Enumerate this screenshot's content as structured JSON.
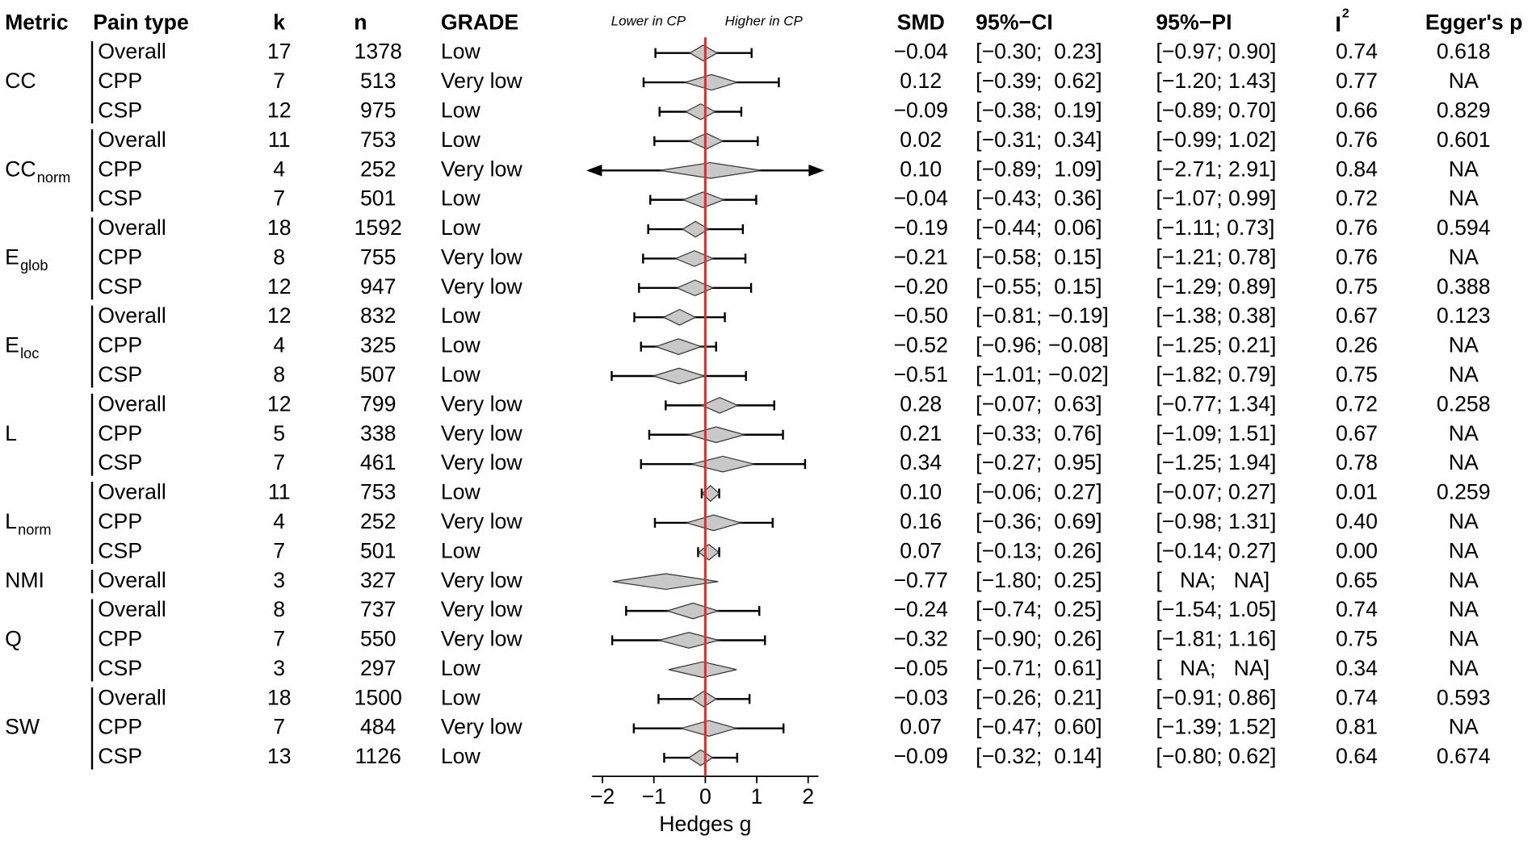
{
  "chart_data": {
    "type": "forest",
    "columns": {
      "metric": "Metric",
      "pain_type": "Pain type",
      "k": "k",
      "n": "n",
      "grade": "GRADE",
      "smd": "SMD",
      "ci": "95%−CI",
      "pi": "95%−PI",
      "i2": "I",
      "i2_sup": "2",
      "egger": "Egger's p"
    },
    "direction_left": "Lower in CP",
    "direction_right": "Higher in CP",
    "xlabel": "Hedges g",
    "xlim": [
      -2.2,
      2.2
    ],
    "xticks": [
      {
        "value": -2,
        "label": "−2"
      },
      {
        "value": -1,
        "label": "−1"
      },
      0,
      1,
      2
    ],
    "reference": 0,
    "reference_color": "#e8282b",
    "diamond_color": "#c8c8c8",
    "groups": [
      {
        "metric": "CC",
        "rows": [
          {
            "pain_type": "Overall",
            "k": 17,
            "n": 1378,
            "grade": "Low",
            "smd": -0.04,
            "smd_label": "−0.04",
            "ci": [
              -0.3,
              0.23
            ],
            "ci_label": "[−0.30;  0.23]",
            "pi": [
              -0.97,
              0.9
            ],
            "pi_label": "[−0.97; 0.90]",
            "i2": "0.74",
            "egger": "0.618"
          },
          {
            "pain_type": "CPP",
            "k": 7,
            "n": 513,
            "grade": "Very low",
            "smd": 0.12,
            "smd_label": "0.12",
            "ci": [
              -0.39,
              0.62
            ],
            "ci_label": "[−0.39;  0.62]",
            "pi": [
              -1.2,
              1.43
            ],
            "pi_label": "[−1.20; 1.43]",
            "i2": "0.77",
            "egger": "NA"
          },
          {
            "pain_type": "CSP",
            "k": 12,
            "n": 975,
            "grade": "Low",
            "smd": -0.09,
            "smd_label": "−0.09",
            "ci": [
              -0.38,
              0.19
            ],
            "ci_label": "[−0.38;  0.19]",
            "pi": [
              -0.89,
              0.7
            ],
            "pi_label": "[−0.89; 0.70]",
            "i2": "0.66",
            "egger": "0.829"
          }
        ]
      },
      {
        "metric": "CC",
        "sub": "norm",
        "rows": [
          {
            "pain_type": "Overall",
            "k": 11,
            "n": 753,
            "grade": "Low",
            "smd": 0.02,
            "smd_label": "0.02",
            "ci": [
              -0.31,
              0.34
            ],
            "ci_label": "[−0.31;  0.34]",
            "pi": [
              -0.99,
              1.02
            ],
            "pi_label": "[−0.99; 1.02]",
            "i2": "0.76",
            "egger": "0.601"
          },
          {
            "pain_type": "CPP",
            "k": 4,
            "n": 252,
            "grade": "Very low",
            "smd": 0.1,
            "smd_label": "0.10",
            "ci": [
              -0.89,
              1.09
            ],
            "ci_label": "[−0.89;  1.09]",
            "pi": [
              -2.71,
              2.91
            ],
            "pi_label": "[−2.71; 2.91]",
            "i2": "0.84",
            "egger": "NA"
          },
          {
            "pain_type": "CSP",
            "k": 7,
            "n": 501,
            "grade": "Low",
            "smd": -0.04,
            "smd_label": "−0.04",
            "ci": [
              -0.43,
              0.36
            ],
            "ci_label": "[−0.43;  0.36]",
            "pi": [
              -1.07,
              0.99
            ],
            "pi_label": "[−1.07; 0.99]",
            "i2": "0.72",
            "egger": "NA"
          }
        ]
      },
      {
        "metric": "E",
        "sub": "glob",
        "rows": [
          {
            "pain_type": "Overall",
            "k": 18,
            "n": 1592,
            "grade": "Low",
            "smd": -0.19,
            "smd_label": "−0.19",
            "ci": [
              -0.44,
              0.06
            ],
            "ci_label": "[−0.44;  0.06]",
            "pi": [
              -1.11,
              0.73
            ],
            "pi_label": "[−1.11; 0.73]",
            "i2": "0.76",
            "egger": "0.594"
          },
          {
            "pain_type": "CPP",
            "k": 8,
            "n": 755,
            "grade": "Very low",
            "smd": -0.21,
            "smd_label": "−0.21",
            "ci": [
              -0.58,
              0.15
            ],
            "ci_label": "[−0.58;  0.15]",
            "pi": [
              -1.21,
              0.78
            ],
            "pi_label": "[−1.21; 0.78]",
            "i2": "0.76",
            "egger": "NA"
          },
          {
            "pain_type": "CSP",
            "k": 12,
            "n": 947,
            "grade": "Very low",
            "smd": -0.2,
            "smd_label": "−0.20",
            "ci": [
              -0.55,
              0.15
            ],
            "ci_label": "[−0.55;  0.15]",
            "pi": [
              -1.29,
              0.89
            ],
            "pi_label": "[−1.29; 0.89]",
            "i2": "0.75",
            "egger": "0.388"
          }
        ]
      },
      {
        "metric": "E",
        "sub": "loc",
        "rows": [
          {
            "pain_type": "Overall",
            "k": 12,
            "n": 832,
            "grade": "Low",
            "smd": -0.5,
            "smd_label": "−0.50",
            "ci": [
              -0.81,
              -0.19
            ],
            "ci_label": "[−0.81; −0.19]",
            "pi": [
              -1.38,
              0.38
            ],
            "pi_label": "[−1.38; 0.38]",
            "i2": "0.67",
            "egger": "0.123"
          },
          {
            "pain_type": "CPP",
            "k": 4,
            "n": 325,
            "grade": "Low",
            "smd": -0.52,
            "smd_label": "−0.52",
            "ci": [
              -0.96,
              -0.08
            ],
            "ci_label": "[−0.96; −0.08]",
            "pi": [
              -1.25,
              0.21
            ],
            "pi_label": "[−1.25; 0.21]",
            "i2": "0.26",
            "egger": "NA"
          },
          {
            "pain_type": "CSP",
            "k": 8,
            "n": 507,
            "grade": "Low",
            "smd": -0.51,
            "smd_label": "−0.51",
            "ci": [
              -1.01,
              -0.02
            ],
            "ci_label": "[−1.01; −0.02]",
            "pi": [
              -1.82,
              0.79
            ],
            "pi_label": "[−1.82; 0.79]",
            "i2": "0.75",
            "egger": "NA"
          }
        ]
      },
      {
        "metric": "L",
        "rows": [
          {
            "pain_type": "Overall",
            "k": 12,
            "n": 799,
            "grade": "Very low",
            "smd": 0.28,
            "smd_label": "0.28",
            "ci": [
              -0.07,
              0.63
            ],
            "ci_label": "[−0.07;  0.63]",
            "pi": [
              -0.77,
              1.34
            ],
            "pi_label": "[−0.77; 1.34]",
            "i2": "0.72",
            "egger": "0.258"
          },
          {
            "pain_type": "CPP",
            "k": 5,
            "n": 338,
            "grade": "Very low",
            "smd": 0.21,
            "smd_label": "0.21",
            "ci": [
              -0.33,
              0.76
            ],
            "ci_label": "[−0.33;  0.76]",
            "pi": [
              -1.09,
              1.51
            ],
            "pi_label": "[−1.09; 1.51]",
            "i2": "0.67",
            "egger": "NA"
          },
          {
            "pain_type": "CSP",
            "k": 7,
            "n": 461,
            "grade": "Very low",
            "smd": 0.34,
            "smd_label": "0.34",
            "ci": [
              -0.27,
              0.95
            ],
            "ci_label": "[−0.27;  0.95]",
            "pi": [
              -1.25,
              1.94
            ],
            "pi_label": "[−1.25; 1.94]",
            "i2": "0.78",
            "egger": "NA"
          }
        ]
      },
      {
        "metric": "L",
        "sub": "norm",
        "rows": [
          {
            "pain_type": "Overall",
            "k": 11,
            "n": 753,
            "grade": "Low",
            "smd": 0.1,
            "smd_label": "0.10",
            "ci": [
              -0.06,
              0.27
            ],
            "ci_label": "[−0.06;  0.27]",
            "pi": [
              -0.07,
              0.27
            ],
            "pi_label": "[−0.07; 0.27]",
            "i2": "0.01",
            "egger": "0.259"
          },
          {
            "pain_type": "CPP",
            "k": 4,
            "n": 252,
            "grade": "Very low",
            "smd": 0.16,
            "smd_label": "0.16",
            "ci": [
              -0.36,
              0.69
            ],
            "ci_label": "[−0.36;  0.69]",
            "pi": [
              -0.98,
              1.31
            ],
            "pi_label": "[−0.98; 1.31]",
            "i2": "0.40",
            "egger": "NA"
          },
          {
            "pain_type": "CSP",
            "k": 7,
            "n": 501,
            "grade": "Low",
            "smd": 0.07,
            "smd_label": "0.07",
            "ci": [
              -0.13,
              0.26
            ],
            "ci_label": "[−0.13;  0.26]",
            "pi": [
              -0.14,
              0.27
            ],
            "pi_label": "[−0.14; 0.27]",
            "i2": "0.00",
            "egger": "NA"
          }
        ]
      },
      {
        "metric": "NMI",
        "rows": [
          {
            "pain_type": "Overall",
            "k": 3,
            "n": 327,
            "grade": "Very low",
            "smd": -0.77,
            "smd_label": "−0.77",
            "ci": [
              -1.8,
              0.25
            ],
            "ci_label": "[−1.80;  0.25]",
            "pi": null,
            "pi_label": "[   NA;   NA]",
            "i2": "0.65",
            "egger": "NA"
          }
        ]
      },
      {
        "metric": "Q",
        "rows": [
          {
            "pain_type": "Overall",
            "k": 8,
            "n": 737,
            "grade": "Very low",
            "smd": -0.24,
            "smd_label": "−0.24",
            "ci": [
              -0.74,
              0.25
            ],
            "ci_label": "[−0.74;  0.25]",
            "pi": [
              -1.54,
              1.05
            ],
            "pi_label": "[−1.54; 1.05]",
            "i2": "0.74",
            "egger": "NA"
          },
          {
            "pain_type": "CPP",
            "k": 7,
            "n": 550,
            "grade": "Very low",
            "smd": -0.32,
            "smd_label": "−0.32",
            "ci": [
              -0.9,
              0.26
            ],
            "ci_label": "[−0.90;  0.26]",
            "pi": [
              -1.81,
              1.16
            ],
            "pi_label": "[−1.81; 1.16]",
            "i2": "0.75",
            "egger": "NA"
          },
          {
            "pain_type": "CSP",
            "k": 3,
            "n": 297,
            "grade": "Low",
            "smd": -0.05,
            "smd_label": "−0.05",
            "ci": [
              -0.71,
              0.61
            ],
            "ci_label": "[−0.71;  0.61]",
            "pi": null,
            "pi_label": "[   NA;   NA]",
            "i2": "0.34",
            "egger": "NA"
          }
        ]
      },
      {
        "metric": "SW",
        "rows": [
          {
            "pain_type": "Overall",
            "k": 18,
            "n": 1500,
            "grade": "Low",
            "smd": -0.03,
            "smd_label": "−0.03",
            "ci": [
              -0.26,
              0.21
            ],
            "ci_label": "[−0.26;  0.21]",
            "pi": [
              -0.91,
              0.86
            ],
            "pi_label": "[−0.91; 0.86]",
            "i2": "0.74",
            "egger": "0.593"
          },
          {
            "pain_type": "CPP",
            "k": 7,
            "n": 484,
            "grade": "Very low",
            "smd": 0.07,
            "smd_label": "0.07",
            "ci": [
              -0.47,
              0.6
            ],
            "ci_label": "[−0.47;  0.60]",
            "pi": [
              -1.39,
              1.52
            ],
            "pi_label": "[−1.39; 1.52]",
            "i2": "0.81",
            "egger": "NA"
          },
          {
            "pain_type": "CSP",
            "k": 13,
            "n": 1126,
            "grade": "Low",
            "smd": -0.09,
            "smd_label": "−0.09",
            "ci": [
              -0.32,
              0.14
            ],
            "ci_label": "[−0.32;  0.14]",
            "pi": [
              -0.8,
              0.62
            ],
            "pi_label": "[−0.80; 0.62]",
            "i2": "0.64",
            "egger": "0.674"
          }
        ]
      }
    ]
  }
}
